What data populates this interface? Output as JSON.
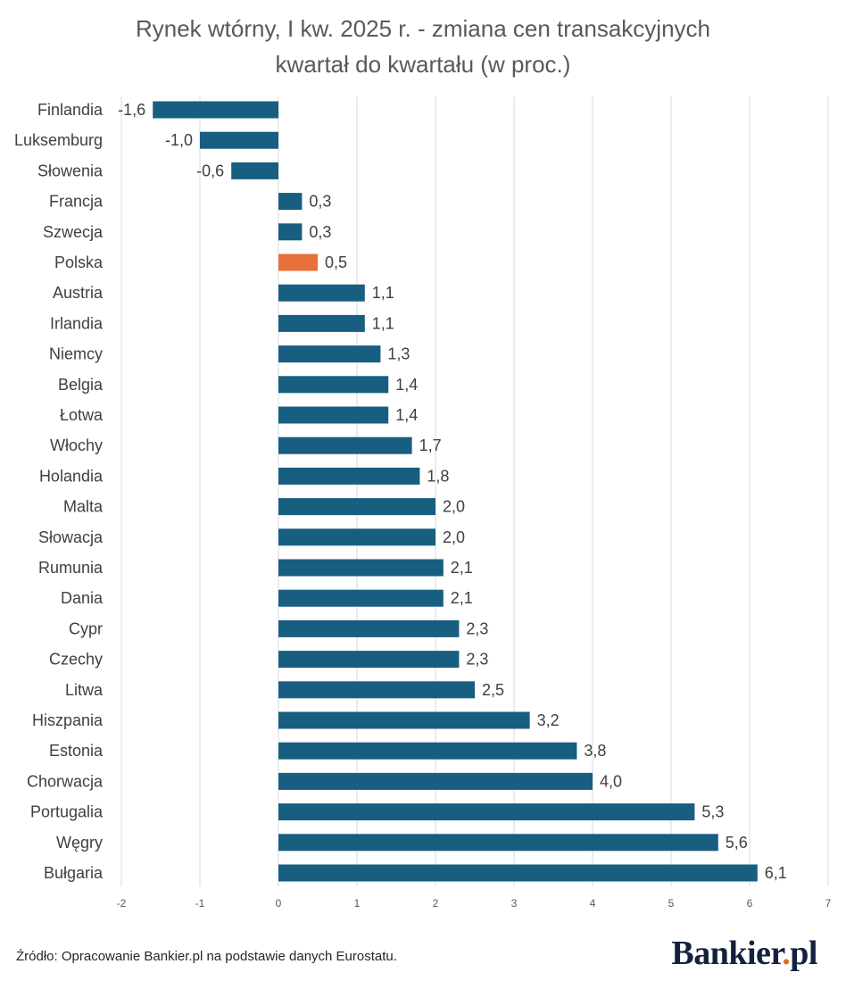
{
  "chart_data": {
    "type": "bar",
    "orientation": "horizontal",
    "title": [
      "Rynek wtórny, I kw. 2025 r. - zmiana cen transakcyjnych",
      "kwartał do kwartału (w proc.)"
    ],
    "categories": [
      "Finlandia",
      "Luksemburg",
      "Słowenia",
      "Francja",
      "Szwecja",
      "Polska",
      "Austria",
      "Irlandia",
      "Niemcy",
      "Belgia",
      "Łotwa",
      "Włochy",
      "Holandia",
      "Malta",
      "Słowacja",
      "Rumunia",
      "Dania",
      "Cypr",
      "Czechy",
      "Litwa",
      "Hiszpania",
      "Estonia",
      "Chorwacja",
      "Portugalia",
      "Węgry",
      "Bułgaria"
    ],
    "values": [
      -1.6,
      -1.0,
      -0.6,
      0.3,
      0.3,
      0.5,
      1.1,
      1.1,
      1.3,
      1.4,
      1.4,
      1.7,
      1.8,
      2.0,
      2.0,
      2.1,
      2.1,
      2.3,
      2.3,
      2.5,
      3.2,
      3.8,
      4.0,
      5.3,
      5.6,
      6.1
    ],
    "value_labels": [
      "-1,6",
      "-1,0",
      "-0,6",
      "0,3",
      "0,3",
      "0,5",
      "1,1",
      "1,1",
      "1,3",
      "1,4",
      "1,4",
      "1,7",
      "1,8",
      "2,0",
      "2,0",
      "2,1",
      "2,1",
      "2,3",
      "2,3",
      "2,5",
      "3,2",
      "3,8",
      "4,0",
      "5,3",
      "5,6",
      "6,1"
    ],
    "highlight_category": "Polska",
    "xlim": [
      -2,
      7
    ],
    "xticks": [
      -2,
      -1,
      0,
      1,
      2,
      3,
      4,
      5,
      6,
      7
    ],
    "xtick_labels": [
      "-2",
      "-1",
      "0",
      "1",
      "2",
      "3",
      "4",
      "5",
      "6",
      "7"
    ],
    "grid": "vertical",
    "colors": {
      "bar": "#185e80",
      "highlight": "#e8703a"
    }
  },
  "footer": {
    "source": "Źródło: Opracowanie Bankier.pl na podstawie danych Eurostatu.",
    "logo_text": "Bankier",
    "logo_dot": ".",
    "logo_suffix": "pl"
  }
}
